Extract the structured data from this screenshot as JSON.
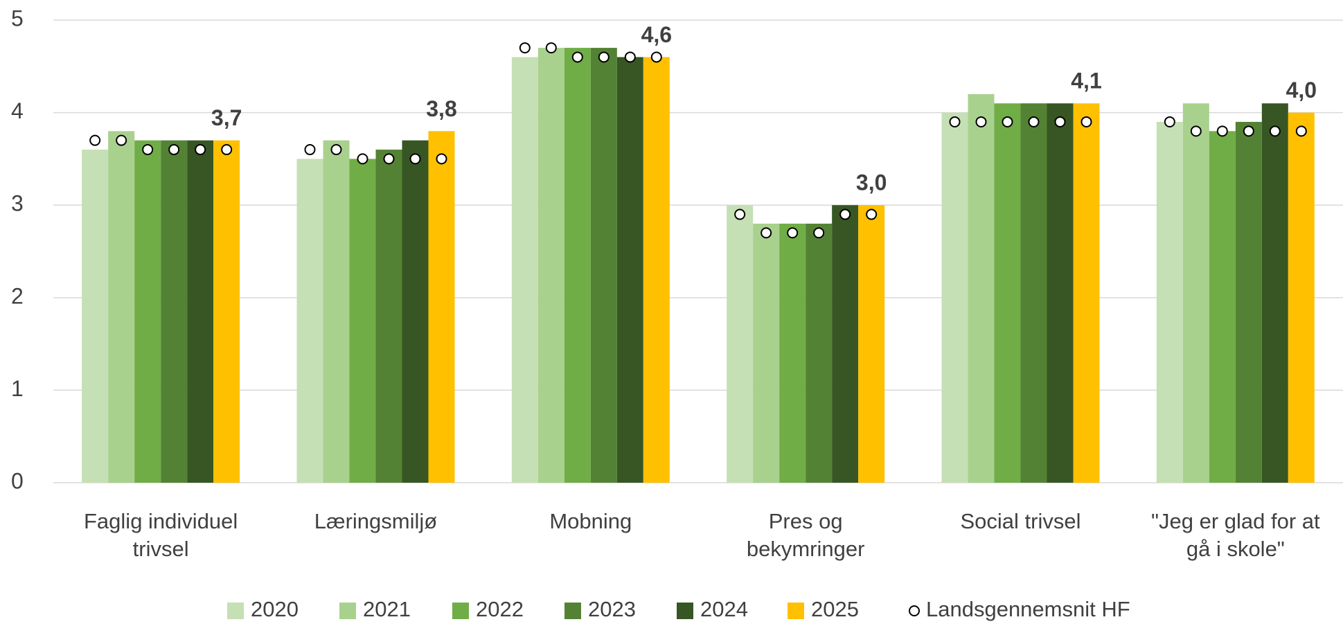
{
  "chart_data": {
    "type": "bar",
    "categories": [
      "Faglig individuel trivsel",
      "Læringsmiljø",
      "Mobning",
      "Pres og bekymringer",
      "Social trivsel",
      "\"Jeg er glad for at gå i skole\""
    ],
    "series": [
      {
        "name": "2020",
        "color": "#c5e0b4",
        "values": [
          3.6,
          3.5,
          4.6,
          3.0,
          4.0,
          3.9
        ]
      },
      {
        "name": "2021",
        "color": "#a9d18e",
        "values": [
          3.8,
          3.7,
          4.7,
          2.8,
          4.2,
          4.1
        ]
      },
      {
        "name": "2022",
        "color": "#70ad47",
        "values": [
          3.7,
          3.5,
          4.7,
          2.8,
          4.1,
          3.8
        ]
      },
      {
        "name": "2023",
        "color": "#548235",
        "values": [
          3.7,
          3.6,
          4.7,
          2.8,
          4.1,
          3.9
        ]
      },
      {
        "name": "2024",
        "color": "#375623",
        "values": [
          3.7,
          3.7,
          4.6,
          3.0,
          4.1,
          4.1
        ]
      },
      {
        "name": "2025",
        "color": "#ffc000",
        "values": [
          3.7,
          3.8,
          4.6,
          3.0,
          4.1,
          4.0
        ],
        "value_labels": [
          "3,7",
          "3,8",
          "4,6",
          "3,0",
          "4,1",
          "4,0"
        ]
      }
    ],
    "average": {
      "name": "Landsgennemsnit HF",
      "values": [
        [
          3.7,
          3.7,
          3.6,
          3.6,
          3.6,
          3.6
        ],
        [
          3.6,
          3.6,
          3.5,
          3.5,
          3.5,
          3.5
        ],
        [
          4.7,
          4.7,
          4.6,
          4.6,
          4.6,
          4.6
        ],
        [
          2.9,
          2.7,
          2.7,
          2.7,
          2.9,
          2.9
        ],
        [
          3.9,
          3.9,
          3.9,
          3.9,
          3.9,
          3.9
        ],
        [
          3.9,
          3.8,
          3.8,
          3.8,
          3.8,
          3.8
        ]
      ]
    },
    "ylim": [
      0,
      5
    ],
    "yticks": [
      0,
      1,
      2,
      3,
      4,
      5
    ],
    "grid": true,
    "legend": "bottom"
  }
}
